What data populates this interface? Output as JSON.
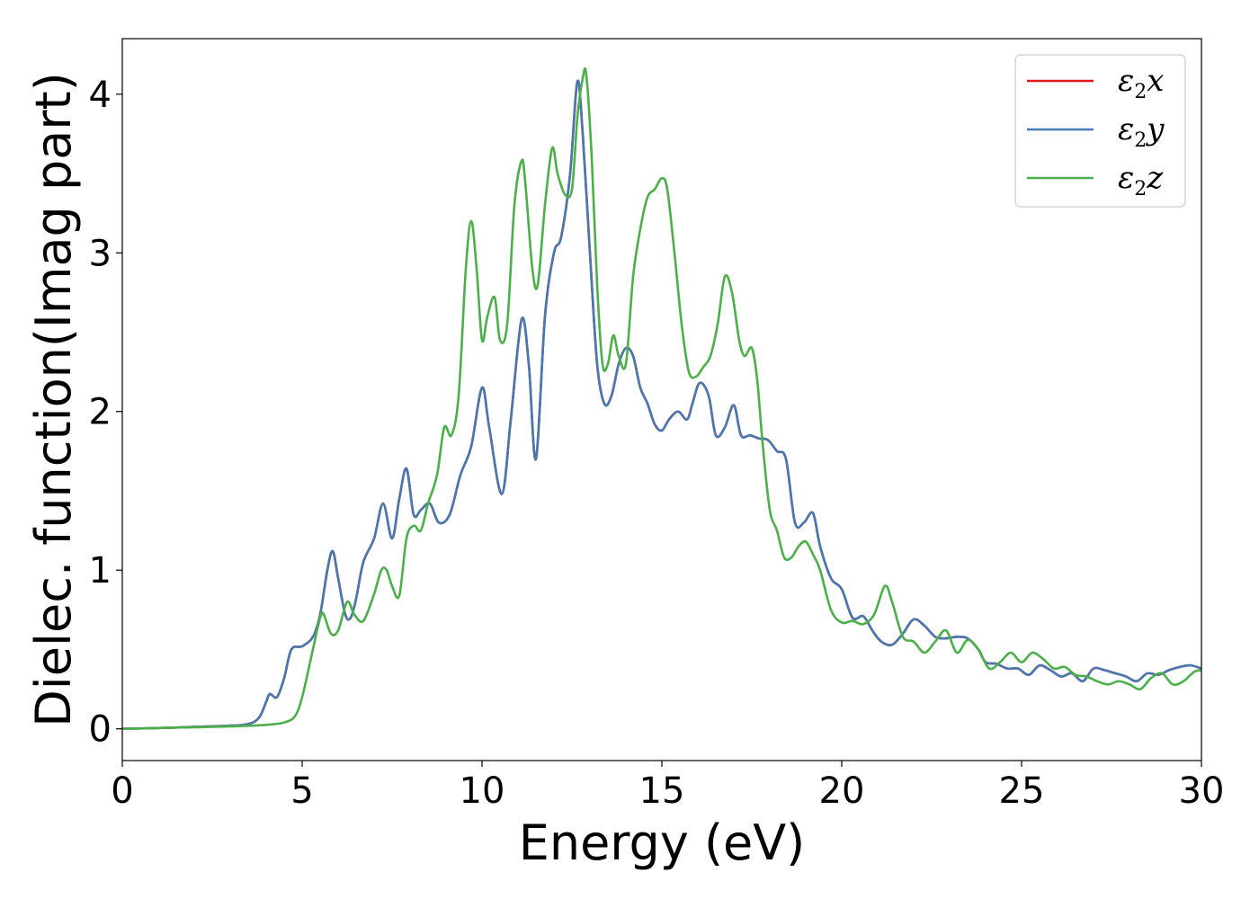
{
  "chart_data": {
    "type": "line",
    "title": "",
    "xlabel": "Energy (eV)",
    "ylabel": "Dielec. function(Imag part)",
    "xlim": [
      0,
      30
    ],
    "ylim": [
      -0.2,
      4.35
    ],
    "xticks": [
      0,
      5,
      10,
      15,
      20,
      25,
      30
    ],
    "yticks": [
      0,
      1,
      2,
      3,
      4
    ],
    "grid": false,
    "legend_position": "top-right",
    "series": [
      {
        "name": "ε2x",
        "legend_base": "ε",
        "legend_sub": "2",
        "legend_var": "x",
        "color": "#e41a1c",
        "x": [
          0,
          1,
          2,
          3,
          3.5,
          3.8,
          4.0,
          4.1,
          4.3,
          4.5,
          4.7,
          5.0,
          5.3,
          5.5,
          5.7,
          5.85,
          6.0,
          6.2,
          6.35,
          6.5,
          6.7,
          7.0,
          7.25,
          7.5,
          7.7,
          7.9,
          8.1,
          8.3,
          8.55,
          8.8,
          9.1,
          9.4,
          9.7,
          10.0,
          10.2,
          10.55,
          10.8,
          11.1,
          11.3,
          11.5,
          11.75,
          12.0,
          12.2,
          12.45,
          12.65,
          12.8,
          13.0,
          13.2,
          13.4,
          13.6,
          13.8,
          14.0,
          14.2,
          14.4,
          14.6,
          14.8,
          15.0,
          15.2,
          15.45,
          15.7,
          15.85,
          16.05,
          16.3,
          16.5,
          16.75,
          17.0,
          17.2,
          17.45,
          17.7,
          17.95,
          18.2,
          18.45,
          18.7,
          18.95,
          19.2,
          19.4,
          19.7,
          20.0,
          20.3,
          20.6,
          20.85,
          21.1,
          21.4,
          21.7,
          22.0,
          22.3,
          22.6,
          22.9,
          23.2,
          23.5,
          23.8,
          24.0,
          24.3,
          24.6,
          24.9,
          25.2,
          25.5,
          25.8,
          26.1,
          26.4,
          26.7,
          27.0,
          27.3,
          27.6,
          27.9,
          28.2,
          28.5,
          28.8,
          29.1,
          29.4,
          29.7,
          30.0
        ],
        "y": [
          0.0,
          0.005,
          0.012,
          0.02,
          0.03,
          0.07,
          0.17,
          0.22,
          0.2,
          0.32,
          0.5,
          0.52,
          0.58,
          0.72,
          1.0,
          1.12,
          0.95,
          0.72,
          0.7,
          0.82,
          1.05,
          1.2,
          1.42,
          1.2,
          1.45,
          1.64,
          1.35,
          1.38,
          1.42,
          1.3,
          1.35,
          1.6,
          1.78,
          2.15,
          1.9,
          1.48,
          1.95,
          2.58,
          2.3,
          1.7,
          2.6,
          3.0,
          3.1,
          3.5,
          4.08,
          3.75,
          3.0,
          2.3,
          2.05,
          2.1,
          2.3,
          2.4,
          2.35,
          2.15,
          2.05,
          1.92,
          1.88,
          1.95,
          2.0,
          1.95,
          2.05,
          2.18,
          2.1,
          1.85,
          1.9,
          2.04,
          1.85,
          1.85,
          1.83,
          1.82,
          1.75,
          1.7,
          1.3,
          1.3,
          1.36,
          1.15,
          0.95,
          0.88,
          0.7,
          0.71,
          0.62,
          0.55,
          0.53,
          0.6,
          0.69,
          0.65,
          0.58,
          0.57,
          0.58,
          0.57,
          0.5,
          0.42,
          0.41,
          0.38,
          0.38,
          0.34,
          0.4,
          0.37,
          0.33,
          0.35,
          0.3,
          0.38,
          0.37,
          0.35,
          0.33,
          0.3,
          0.35,
          0.34,
          0.37,
          0.39,
          0.4,
          0.38
        ]
      },
      {
        "name": "ε2y",
        "legend_base": "ε",
        "legend_sub": "2",
        "legend_var": "y",
        "color": "#4878b0",
        "x": [
          0,
          1,
          2,
          3,
          3.5,
          3.8,
          4.0,
          4.1,
          4.3,
          4.5,
          4.7,
          5.0,
          5.3,
          5.5,
          5.7,
          5.85,
          6.0,
          6.2,
          6.35,
          6.5,
          6.7,
          7.0,
          7.25,
          7.5,
          7.7,
          7.9,
          8.1,
          8.3,
          8.55,
          8.8,
          9.1,
          9.4,
          9.7,
          10.0,
          10.2,
          10.55,
          10.8,
          11.1,
          11.3,
          11.5,
          11.75,
          12.0,
          12.2,
          12.45,
          12.65,
          12.8,
          13.0,
          13.2,
          13.4,
          13.6,
          13.8,
          14.0,
          14.2,
          14.4,
          14.6,
          14.8,
          15.0,
          15.2,
          15.45,
          15.7,
          15.85,
          16.05,
          16.3,
          16.5,
          16.75,
          17.0,
          17.2,
          17.45,
          17.7,
          17.95,
          18.2,
          18.45,
          18.7,
          18.95,
          19.2,
          19.4,
          19.7,
          20.0,
          20.3,
          20.6,
          20.85,
          21.1,
          21.4,
          21.7,
          22.0,
          22.3,
          22.6,
          22.9,
          23.2,
          23.5,
          23.8,
          24.0,
          24.3,
          24.6,
          24.9,
          25.2,
          25.5,
          25.8,
          26.1,
          26.4,
          26.7,
          27.0,
          27.3,
          27.6,
          27.9,
          28.2,
          28.5,
          28.8,
          29.1,
          29.4,
          29.7,
          30.0
        ],
        "y": [
          0.0,
          0.005,
          0.012,
          0.02,
          0.03,
          0.07,
          0.17,
          0.22,
          0.2,
          0.32,
          0.5,
          0.52,
          0.58,
          0.72,
          1.0,
          1.12,
          0.95,
          0.72,
          0.7,
          0.82,
          1.05,
          1.2,
          1.42,
          1.2,
          1.45,
          1.64,
          1.35,
          1.38,
          1.42,
          1.3,
          1.35,
          1.6,
          1.78,
          2.15,
          1.9,
          1.48,
          1.95,
          2.58,
          2.3,
          1.7,
          2.6,
          3.0,
          3.1,
          3.5,
          4.08,
          3.75,
          3.0,
          2.3,
          2.05,
          2.1,
          2.3,
          2.4,
          2.35,
          2.15,
          2.05,
          1.92,
          1.88,
          1.95,
          2.0,
          1.95,
          2.05,
          2.18,
          2.1,
          1.85,
          1.9,
          2.04,
          1.85,
          1.85,
          1.83,
          1.82,
          1.75,
          1.7,
          1.3,
          1.3,
          1.36,
          1.15,
          0.95,
          0.88,
          0.7,
          0.71,
          0.62,
          0.55,
          0.53,
          0.6,
          0.69,
          0.65,
          0.58,
          0.57,
          0.58,
          0.57,
          0.5,
          0.42,
          0.41,
          0.38,
          0.38,
          0.34,
          0.4,
          0.37,
          0.33,
          0.35,
          0.3,
          0.38,
          0.37,
          0.35,
          0.33,
          0.3,
          0.35,
          0.34,
          0.37,
          0.39,
          0.4,
          0.38
        ]
      },
      {
        "name": "ε2z",
        "legend_base": "ε",
        "legend_sub": "2",
        "legend_var": "z",
        "color": "#4daf4a",
        "x": [
          0,
          1,
          2,
          3,
          4.0,
          4.5,
          4.8,
          5.0,
          5.25,
          5.5,
          5.6,
          5.8,
          6.0,
          6.25,
          6.45,
          6.7,
          7.0,
          7.2,
          7.35,
          7.5,
          7.7,
          7.9,
          8.1,
          8.3,
          8.5,
          8.75,
          8.95,
          9.15,
          9.35,
          9.55,
          9.7,
          9.85,
          10.0,
          10.15,
          10.35,
          10.5,
          10.7,
          10.9,
          11.1,
          11.2,
          11.4,
          11.55,
          11.75,
          11.95,
          12.1,
          12.3,
          12.5,
          12.65,
          12.8,
          12.9,
          13.05,
          13.2,
          13.35,
          13.5,
          13.65,
          13.8,
          14.0,
          14.2,
          14.4,
          14.6,
          14.8,
          15.0,
          15.15,
          15.35,
          15.55,
          15.75,
          15.95,
          16.15,
          16.35,
          16.55,
          16.75,
          16.95,
          17.15,
          17.3,
          17.5,
          17.65,
          17.8,
          18.0,
          18.2,
          18.4,
          18.6,
          18.8,
          19.0,
          19.2,
          19.4,
          19.7,
          20.0,
          20.3,
          20.6,
          20.9,
          21.2,
          21.4,
          21.7,
          22.0,
          22.3,
          22.6,
          22.9,
          23.2,
          23.5,
          23.8,
          24.1,
          24.4,
          24.7,
          25.0,
          25.3,
          25.6,
          25.9,
          26.2,
          26.5,
          26.8,
          27.1,
          27.4,
          27.7,
          28.0,
          28.3,
          28.6,
          28.9,
          29.2,
          29.5,
          29.8,
          30.0
        ],
        "y": [
          0.0,
          0.005,
          0.01,
          0.015,
          0.025,
          0.04,
          0.08,
          0.2,
          0.45,
          0.7,
          0.72,
          0.6,
          0.62,
          0.8,
          0.72,
          0.68,
          0.85,
          1.0,
          1.0,
          0.9,
          0.84,
          1.2,
          1.28,
          1.25,
          1.42,
          1.6,
          1.9,
          1.85,
          2.1,
          2.9,
          3.2,
          2.9,
          2.45,
          2.6,
          2.72,
          2.45,
          2.55,
          3.3,
          3.58,
          3.45,
          2.9,
          2.8,
          3.3,
          3.66,
          3.5,
          3.37,
          3.4,
          3.85,
          4.1,
          4.12,
          3.6,
          2.8,
          2.3,
          2.3,
          2.48,
          2.35,
          2.3,
          2.85,
          3.15,
          3.35,
          3.4,
          3.47,
          3.4,
          3.0,
          2.55,
          2.25,
          2.22,
          2.28,
          2.35,
          2.55,
          2.85,
          2.75,
          2.45,
          2.35,
          2.4,
          2.2,
          1.8,
          1.38,
          1.25,
          1.08,
          1.08,
          1.15,
          1.18,
          1.1,
          1.0,
          0.75,
          0.67,
          0.68,
          0.66,
          0.72,
          0.9,
          0.8,
          0.58,
          0.55,
          0.48,
          0.55,
          0.62,
          0.48,
          0.56,
          0.5,
          0.38,
          0.42,
          0.48,
          0.42,
          0.48,
          0.44,
          0.38,
          0.39,
          0.34,
          0.33,
          0.3,
          0.28,
          0.3,
          0.28,
          0.25,
          0.32,
          0.35,
          0.28,
          0.3,
          0.36,
          0.37
        ]
      }
    ]
  }
}
